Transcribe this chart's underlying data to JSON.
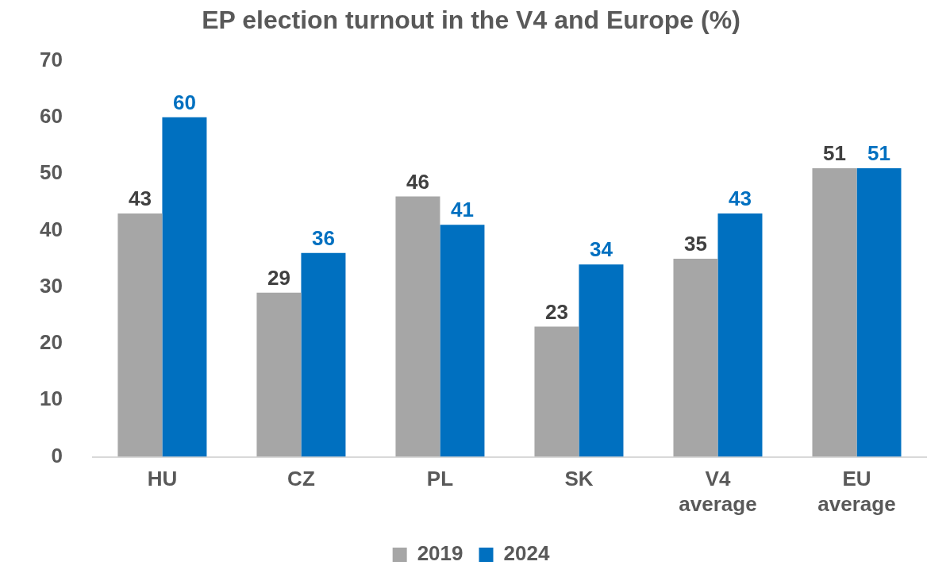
{
  "chart_data": {
    "type": "bar",
    "title": "EP election turnout in the V4 and Europe (%)",
    "categories": [
      "HU",
      "CZ",
      "PL",
      "SK",
      "V4 average",
      "EU average"
    ],
    "series": [
      {
        "name": "2019",
        "color": "#a6a6a6",
        "values": [
          43,
          29,
          46,
          23,
          35,
          51
        ]
      },
      {
        "name": "2024",
        "color": "#0070c0",
        "values": [
          60,
          36,
          41,
          34,
          43,
          51
        ]
      }
    ],
    "ylim": [
      0,
      70
    ],
    "yticks": [
      0,
      10,
      20,
      30,
      40,
      50,
      60,
      70
    ],
    "grid": false,
    "legend": "bottom",
    "data_labels": true
  }
}
